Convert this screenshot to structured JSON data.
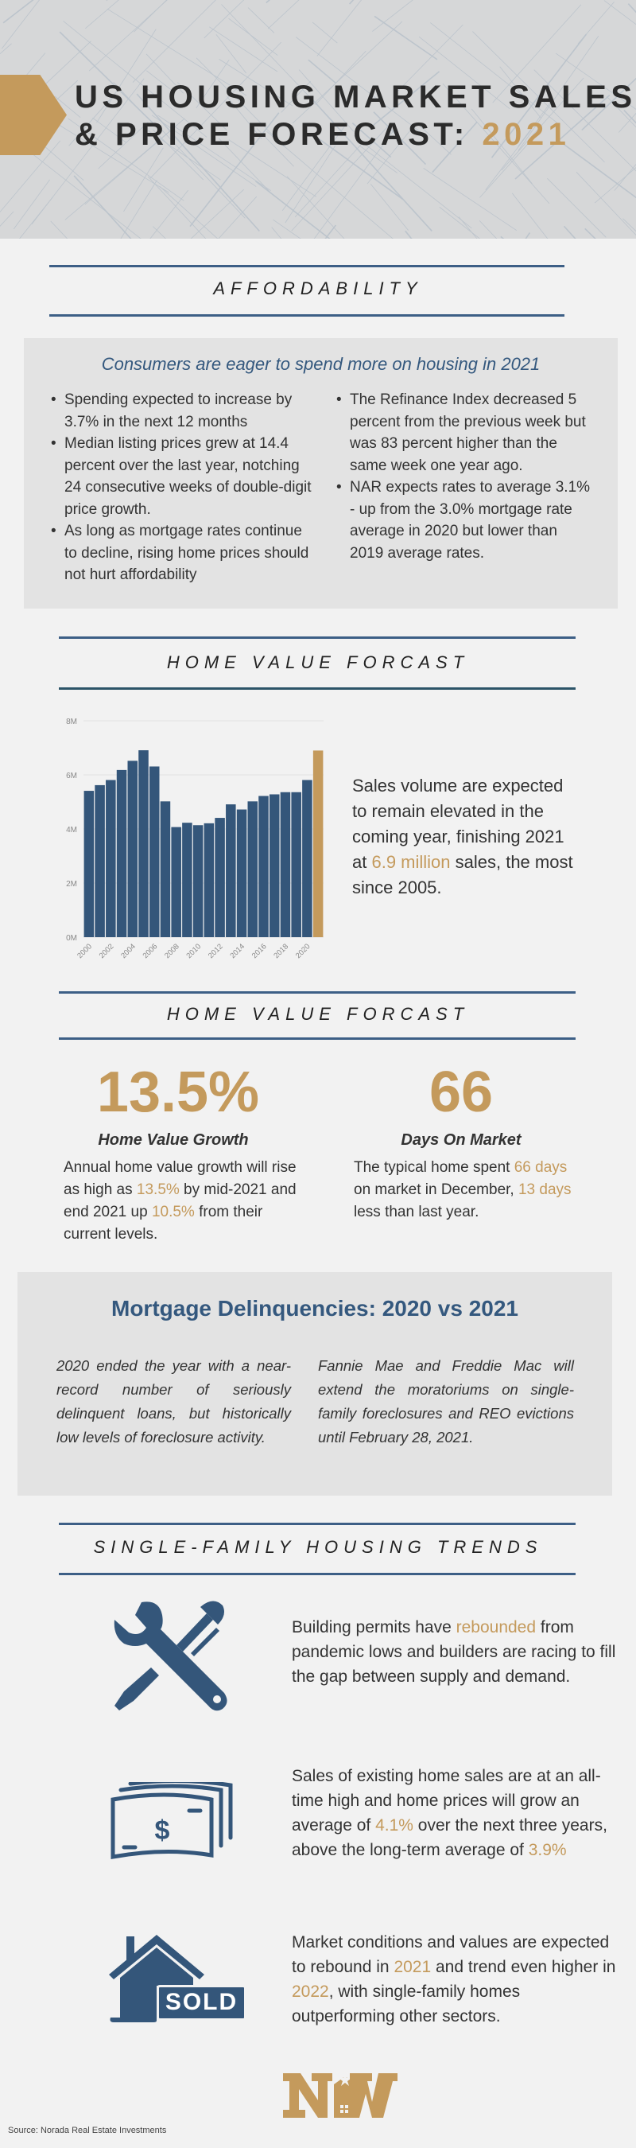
{
  "header": {
    "title_line1": "US HOUSING MARKET SALES",
    "title_line2_prefix": "& PRICE FORECAST:",
    "title_year": "2021"
  },
  "colors": {
    "navy": "#34587e",
    "gold": "#c49a5c",
    "background": "#f2f2f2",
    "panel": "#e3e3e3"
  },
  "affordability": {
    "section_title": "AFFORDABILITY",
    "heading": "Consumers are eager to spend more on housing in 2021",
    "left_bullets": [
      "Spending expected to increase by 3.7% in the next 12 months",
      "Median listing prices grew at 14.4 percent over the last year, notching 24 consecutive weeks of double-digit price growth.",
      "As long as mortgage rates continue to decline, rising home prices should not hurt affordability"
    ],
    "right_bullets": [
      "The Refinance Index decreased 5 percent from the previous week but was 83 percent higher than the same week one year ago.",
      "NAR expects rates to average 3.1% - up from the 3.0% mortgage rate average in 2020 but lower than 2019 average rates."
    ]
  },
  "sales_section": {
    "section_title": "HOME VALUE FORCAST",
    "text": [
      {
        "t": "Sales volume are expected to remain elevated in the coming year, finishing 2021 at "
      },
      {
        "t": "6.9 million",
        "hl": true
      },
      {
        "t": " sales, the most since 2005."
      }
    ]
  },
  "chart_data": {
    "type": "bar",
    "categories": [
      "2000",
      "2001",
      "2002",
      "2003",
      "2004",
      "2005",
      "2006",
      "2007",
      "2008",
      "2009",
      "2010",
      "2011",
      "2012",
      "2013",
      "2014",
      "2015",
      "2016",
      "2017",
      "2018",
      "2019",
      "2020",
      "2021"
    ],
    "values": [
      5.41,
      5.62,
      5.81,
      6.18,
      6.52,
      6.91,
      6.31,
      5.02,
      4.07,
      4.23,
      4.14,
      4.21,
      4.41,
      4.91,
      4.72,
      5.02,
      5.22,
      5.28,
      5.36,
      5.36,
      5.81,
      6.9
    ],
    "unit": "M",
    "highlight_category": "2021",
    "bar_color": "#34567a",
    "highlight_color": "#c49a5c",
    "x_tick_labels": [
      "2000",
      "2002",
      "2004",
      "2006",
      "2008",
      "2010",
      "2012",
      "2014",
      "2016",
      "2018",
      "2020"
    ],
    "y_tick_labels": [
      "0M",
      "2M",
      "4M",
      "6M",
      "8M"
    ],
    "ylim": [
      0,
      8
    ],
    "grid": true,
    "title": "",
    "xlabel": "",
    "ylabel": ""
  },
  "value_section": {
    "section_title": "HOME VALUE FORCAST",
    "stats": [
      {
        "value": "13.5%",
        "label": "Home Value Growth",
        "text": [
          {
            "t": "Annual home value growth will rise as high as "
          },
          {
            "t": "13.5%",
            "hl": true
          },
          {
            "t": " by mid-2021 and end 2021 up "
          },
          {
            "t": "10.5%",
            "hl": true
          },
          {
            "t": " from their current levels."
          }
        ]
      },
      {
        "value": "66",
        "label": "Days On Market",
        "text": [
          {
            "t": "The typical home spent "
          },
          {
            "t": "66 days",
            "hl": true
          },
          {
            "t": " on market in December, "
          },
          {
            "t": "13 days",
            "hl": true
          },
          {
            "t": " less than last year."
          }
        ]
      }
    ]
  },
  "mortgage": {
    "title": "Mortgage Delinquencies: 2020 vs 2021",
    "left": "2020 ended the year with a near-record number of seriously delinquent loans, but historically low levels of foreclosure activity.",
    "right": "Fannie Mae and Freddie Mac will extend the moratoriums on single-family foreclosures and REO evictions until February 28, 2021."
  },
  "trends": {
    "section_title": "SINGLE-FAMILY HOUSING TRENDS",
    "items": [
      {
        "icon": "tools-icon",
        "text": [
          {
            "t": "Building permits have "
          },
          {
            "t": "rebounded",
            "hl": true
          },
          {
            "t": " from pandemic lows and builders are racing to fill the gap between supply and demand."
          }
        ]
      },
      {
        "icon": "money-icon",
        "text": [
          {
            "t": "Sales of existing home sales are at an all-time high and home prices will grow an average of "
          },
          {
            "t": "4.1%",
            "hl": true
          },
          {
            "t": " over the next three years, above the long-term average of "
          },
          {
            "t": "3.9%",
            "hl": true
          }
        ]
      },
      {
        "icon": "house-sold-icon",
        "sold_label": "SOLD",
        "text": [
          {
            "t": "Market conditions and values are expected to rebound in "
          },
          {
            "t": "2021",
            "hl": true
          },
          {
            "t": " and trend even higher in "
          },
          {
            "t": "2022",
            "hl": true
          },
          {
            "t": ", with single-family homes outperforming other sectors."
          }
        ]
      }
    ]
  },
  "footer": {
    "logo_text": "NW",
    "source": "Source: Norada Real Estate Investments"
  }
}
